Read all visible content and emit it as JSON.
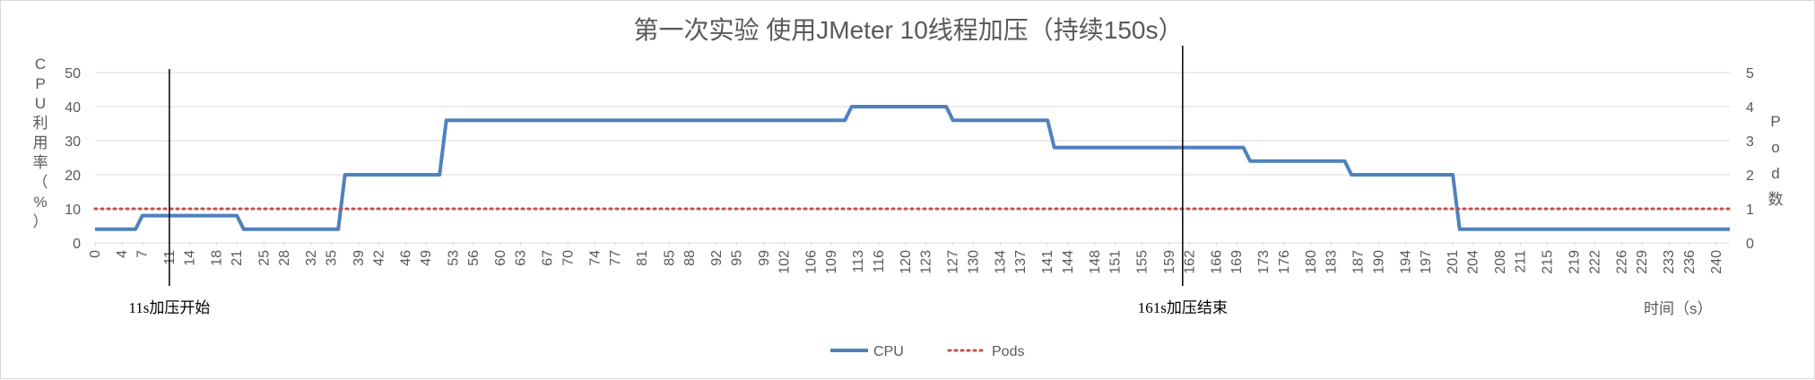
{
  "chart_data": {
    "type": "line",
    "title": "第一次实验 使用JMeter 10线程加压（持续150s）",
    "xlabel": "时间（s）",
    "ylabel": "CPU利用率（%）",
    "y2label": "Pod数",
    "ylim": [
      0,
      50
    ],
    "yticks": [
      0,
      10,
      20,
      30,
      40,
      50
    ],
    "y2lim": [
      0,
      5
    ],
    "y2ticks": [
      0,
      1,
      2,
      3,
      4,
      5
    ],
    "xlim": [
      0,
      242
    ],
    "xtick_labels": [
      "0",
      "4",
      "7",
      "11",
      "14",
      "18",
      "21",
      "25",
      "28",
      "32",
      "35",
      "39",
      "42",
      "46",
      "49",
      "53",
      "56",
      "60",
      "63",
      "67",
      "70",
      "74",
      "77",
      "81",
      "85",
      "88",
      "92",
      "95",
      "99",
      "102",
      "106",
      "109",
      "113",
      "116",
      "120",
      "123",
      "127",
      "130",
      "134",
      "137",
      "141",
      "144",
      "148",
      "151",
      "155",
      "159",
      "162",
      "166",
      "169",
      "173",
      "176",
      "180",
      "183",
      "187",
      "190",
      "194",
      "197",
      "201",
      "204",
      "208",
      "211",
      "215",
      "219",
      "222",
      "226",
      "229",
      "233",
      "236",
      "240"
    ],
    "grid": "horizontal",
    "legend_position": "bottom",
    "series": [
      {
        "name": "CPU",
        "axis": "left",
        "color": "#4f81bd",
        "style": "solid",
        "x": [
          0,
          6,
          7,
          21,
          22,
          36,
          37,
          51,
          52,
          111,
          112,
          126,
          127,
          141,
          142,
          170,
          171,
          185,
          186,
          201,
          202,
          242
        ],
        "y": [
          4,
          4,
          8,
          8,
          4,
          4,
          20,
          20,
          36,
          36,
          40,
          40,
          36,
          36,
          28,
          28,
          24,
          24,
          20,
          20,
          4,
          4
        ]
      },
      {
        "name": "Pods",
        "axis": "right",
        "color": "#c0504d",
        "style": "dotted",
        "x": [
          0,
          242
        ],
        "y": [
          1,
          1
        ]
      }
    ],
    "annotations": [
      {
        "x": 11,
        "text": "11s加压开始"
      },
      {
        "x": 161,
        "text": "161s加压结束"
      }
    ]
  }
}
